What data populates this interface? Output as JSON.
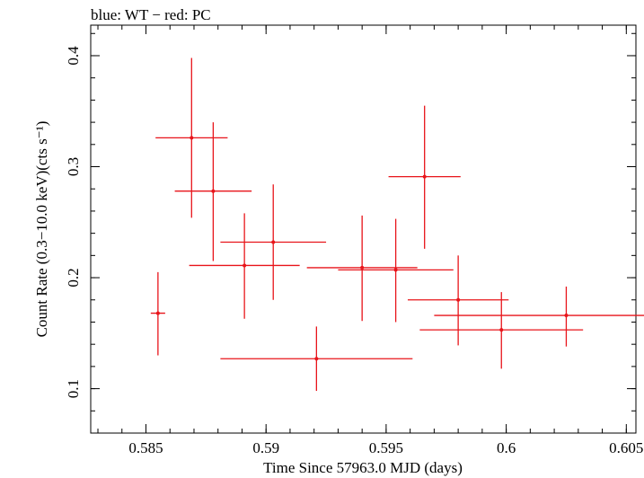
{
  "chart_data": {
    "type": "scatter",
    "title": "blue: WT − red: PC",
    "xlabel": "Time Since 57963.0 MJD (days)",
    "ylabel": "Count Rate (0.3−10.0 keV)(cts s⁻¹)",
    "xlim": [
      0.5827,
      0.6054
    ],
    "ylim": [
      0.06,
      0.4275
    ],
    "x_ticks": [
      {
        "value": 0.585,
        "label": "0.585"
      },
      {
        "value": 0.59,
        "label": "0.59"
      },
      {
        "value": 0.595,
        "label": "0.595"
      },
      {
        "value": 0.6,
        "label": "0.6"
      },
      {
        "value": 0.605,
        "label": "0.605"
      }
    ],
    "y_ticks": [
      {
        "value": 0.1,
        "label": "0.1"
      },
      {
        "value": 0.2,
        "label": "0.2"
      },
      {
        "value": 0.3,
        "label": "0.3"
      },
      {
        "value": 0.4,
        "label": "0.4"
      }
    ],
    "x_minor_step": 0.001,
    "y_minor_step": 0.02,
    "grid": false,
    "series": [
      {
        "color": "#e8141a",
        "points": [
          {
            "x": 0.5855,
            "xerr_lo": 0.0003,
            "xerr_hi": 0.0003,
            "y": 0.168,
            "yerr_lo": 0.038,
            "yerr_hi": 0.037
          },
          {
            "x": 0.5869,
            "xerr_lo": 0.0015,
            "xerr_hi": 0.0015,
            "y": 0.326,
            "yerr_lo": 0.072,
            "yerr_hi": 0.072
          },
          {
            "x": 0.5878,
            "xerr_lo": 0.0016,
            "xerr_hi": 0.0016,
            "y": 0.278,
            "yerr_lo": 0.063,
            "yerr_hi": 0.062
          },
          {
            "x": 0.5891,
            "xerr_lo": 0.0023,
            "xerr_hi": 0.0023,
            "y": 0.211,
            "yerr_lo": 0.048,
            "yerr_hi": 0.047
          },
          {
            "x": 0.5903,
            "xerr_lo": 0.0022,
            "xerr_hi": 0.0022,
            "y": 0.232,
            "yerr_lo": 0.052,
            "yerr_hi": 0.052
          },
          {
            "x": 0.5921,
            "xerr_lo": 0.004,
            "xerr_hi": 0.004,
            "y": 0.127,
            "yerr_lo": 0.029,
            "yerr_hi": 0.029
          },
          {
            "x": 0.594,
            "xerr_lo": 0.0023,
            "xerr_hi": 0.0023,
            "y": 0.209,
            "yerr_lo": 0.048,
            "yerr_hi": 0.047
          },
          {
            "x": 0.5954,
            "xerr_lo": 0.0024,
            "xerr_hi": 0.0024,
            "y": 0.207,
            "yerr_lo": 0.047,
            "yerr_hi": 0.046
          },
          {
            "x": 0.5966,
            "xerr_lo": 0.0015,
            "xerr_hi": 0.0015,
            "y": 0.291,
            "yerr_lo": 0.065,
            "yerr_hi": 0.064
          },
          {
            "x": 0.598,
            "xerr_lo": 0.0021,
            "xerr_hi": 0.0021,
            "y": 0.18,
            "yerr_lo": 0.041,
            "yerr_hi": 0.04
          },
          {
            "x": 0.5998,
            "xerr_lo": 0.0034,
            "xerr_hi": 0.0034,
            "y": 0.153,
            "yerr_lo": 0.035,
            "yerr_hi": 0.034
          },
          {
            "x": 0.6025,
            "xerr_lo": 0.0055,
            "xerr_hi": 0.0055,
            "y": 0.166,
            "yerr_lo": 0.028,
            "yerr_hi": 0.026
          }
        ]
      }
    ]
  }
}
